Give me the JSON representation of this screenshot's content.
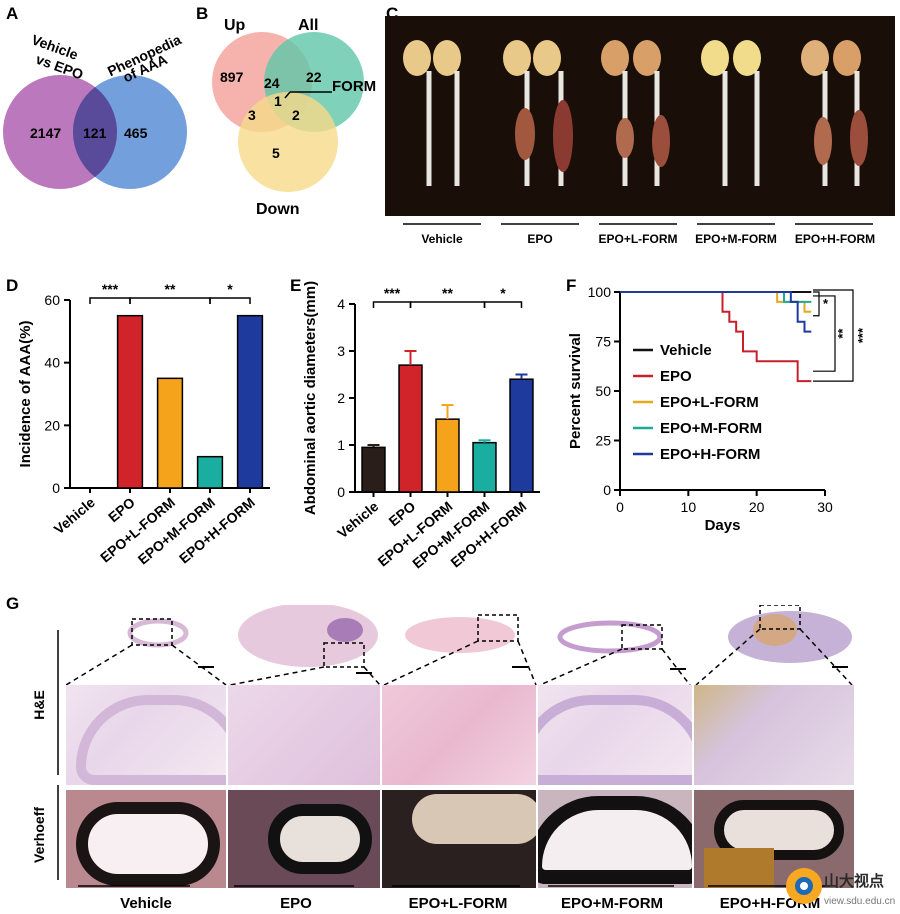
{
  "panel_letters": {
    "a": "A",
    "b": "B",
    "c": "C",
    "d": "D",
    "e": "E",
    "f": "F",
    "g": "G"
  },
  "venn_a": {
    "left_label_1": "Vehicle",
    "left_label_2": "vs  EPO",
    "right_label_1": "Phenopedia",
    "right_label_2": "of AAA",
    "left_only": "2147",
    "overlap": "121",
    "right_only": "465",
    "colors": {
      "left": "#b060b0",
      "right": "#5b8fd6",
      "overlap": "#5a4a9a"
    }
  },
  "venn_b": {
    "up_label": "Up",
    "all_label": "All",
    "down_label": "Down",
    "form_label": "FORM",
    "up_only": "897",
    "all_only": "22",
    "up_all": "24",
    "center": "1",
    "up_down": "3",
    "all_down": "2",
    "down_only": "5",
    "colors": {
      "up": "#f4a6a0",
      "all": "#5fc7a8",
      "down": "#f6d98a"
    }
  },
  "photo_c": {
    "groups": [
      "Vehicle",
      "EPO",
      "EPO+L-FORM",
      "EPO+M-FORM",
      "EPO+H-FORM"
    ]
  },
  "chart_data": [
    {
      "panel": "D",
      "type": "bar",
      "ylabel": "Incidence of AAA(%)",
      "xlabel": "",
      "categories": [
        "Vehicle",
        "EPO",
        "EPO+L-FORM",
        "EPO+M-FORM",
        "EPO+H-FORM"
      ],
      "values": [
        0,
        55,
        35,
        10,
        55
      ],
      "colors": [
        "#222222",
        "#d0232a",
        "#f5a31a",
        "#1aaea0",
        "#1e3a9c"
      ],
      "ylim": [
        0,
        60
      ],
      "yticks": [
        "0",
        "20",
        "40",
        "60"
      ],
      "significance": [
        {
          "from": 1,
          "to": 0,
          "label": "***"
        },
        {
          "from": 1,
          "to": 3,
          "label": "**"
        },
        {
          "from": 3,
          "to": 4,
          "label": "*"
        }
      ]
    },
    {
      "panel": "E",
      "type": "bar",
      "ylabel": "Abdominal aortic diameters(mm)",
      "xlabel": "",
      "categories": [
        "Vehicle",
        "EPO",
        "EPO+L-FORM",
        "EPO+M-FORM",
        "EPO+H-FORM"
      ],
      "values": [
        0.95,
        2.7,
        1.55,
        1.05,
        2.4
      ],
      "errors": [
        0.05,
        0.3,
        0.3,
        0.05,
        0.1
      ],
      "colors": [
        "#2a1e1a",
        "#d0232a",
        "#f5a31a",
        "#1aaea0",
        "#1e3a9c"
      ],
      "ylim": [
        0,
        4
      ],
      "yticks": [
        "0",
        "1",
        "2",
        "3",
        "4"
      ],
      "significance": [
        {
          "from": 0,
          "to": 1,
          "label": "***"
        },
        {
          "from": 1,
          "to": 3,
          "label": "**"
        },
        {
          "from": 3,
          "to": 4,
          "label": "*"
        }
      ]
    },
    {
      "panel": "F",
      "type": "line",
      "ylabel": "Percent survival",
      "xlabel": "Days",
      "xlim": [
        0,
        30
      ],
      "ylim": [
        0,
        100
      ],
      "xticks": [
        "0",
        "10",
        "20",
        "30"
      ],
      "yticks": [
        "0",
        "25",
        "50",
        "75",
        "100"
      ],
      "legend_position": "center-right",
      "series": [
        {
          "name": "Vehicle",
          "color": "#111111",
          "points": [
            [
              0,
              100
            ],
            [
              28,
              100
            ]
          ]
        },
        {
          "name": "EPO",
          "color": "#c8202a",
          "points": [
            [
              0,
              100
            ],
            [
              15,
              100
            ],
            [
              15,
              90
            ],
            [
              16,
              90
            ],
            [
              16,
              85
            ],
            [
              17,
              85
            ],
            [
              17,
              80
            ],
            [
              18,
              80
            ],
            [
              18,
              70
            ],
            [
              20,
              70
            ],
            [
              20,
              65
            ],
            [
              26,
              65
            ],
            [
              26,
              55
            ],
            [
              28,
              55
            ]
          ]
        },
        {
          "name": "EPO+L-FORM",
          "color": "#e8a81c",
          "points": [
            [
              0,
              100
            ],
            [
              23,
              100
            ],
            [
              23,
              95
            ],
            [
              27,
              95
            ],
            [
              27,
              90
            ],
            [
              28,
              90
            ]
          ]
        },
        {
          "name": "EPO+M-FORM",
          "color": "#20a898",
          "points": [
            [
              0,
              100
            ],
            [
              24,
              100
            ],
            [
              24,
              95
            ],
            [
              28,
              95
            ]
          ]
        },
        {
          "name": "EPO+H-FORM",
          "color": "#1e3a9c",
          "points": [
            [
              0,
              100
            ],
            [
              25,
              100
            ],
            [
              25,
              95
            ],
            [
              26,
              95
            ],
            [
              26,
              85
            ],
            [
              27,
              85
            ],
            [
              27,
              80
            ],
            [
              28,
              80
            ]
          ]
        }
      ],
      "significance": [
        {
          "label": "*"
        },
        {
          "label": "**"
        },
        {
          "label": "***"
        }
      ]
    }
  ],
  "panel_g": {
    "row_labels": [
      "H&E",
      "Verhoeff"
    ],
    "groups": [
      "Vehicle",
      "EPO",
      "EPO+L-FORM",
      "EPO+M-FORM",
      "EPO+H-FORM"
    ]
  },
  "watermark": {
    "text": "山大视点",
    "url": "view.sdu.edu.cn"
  }
}
